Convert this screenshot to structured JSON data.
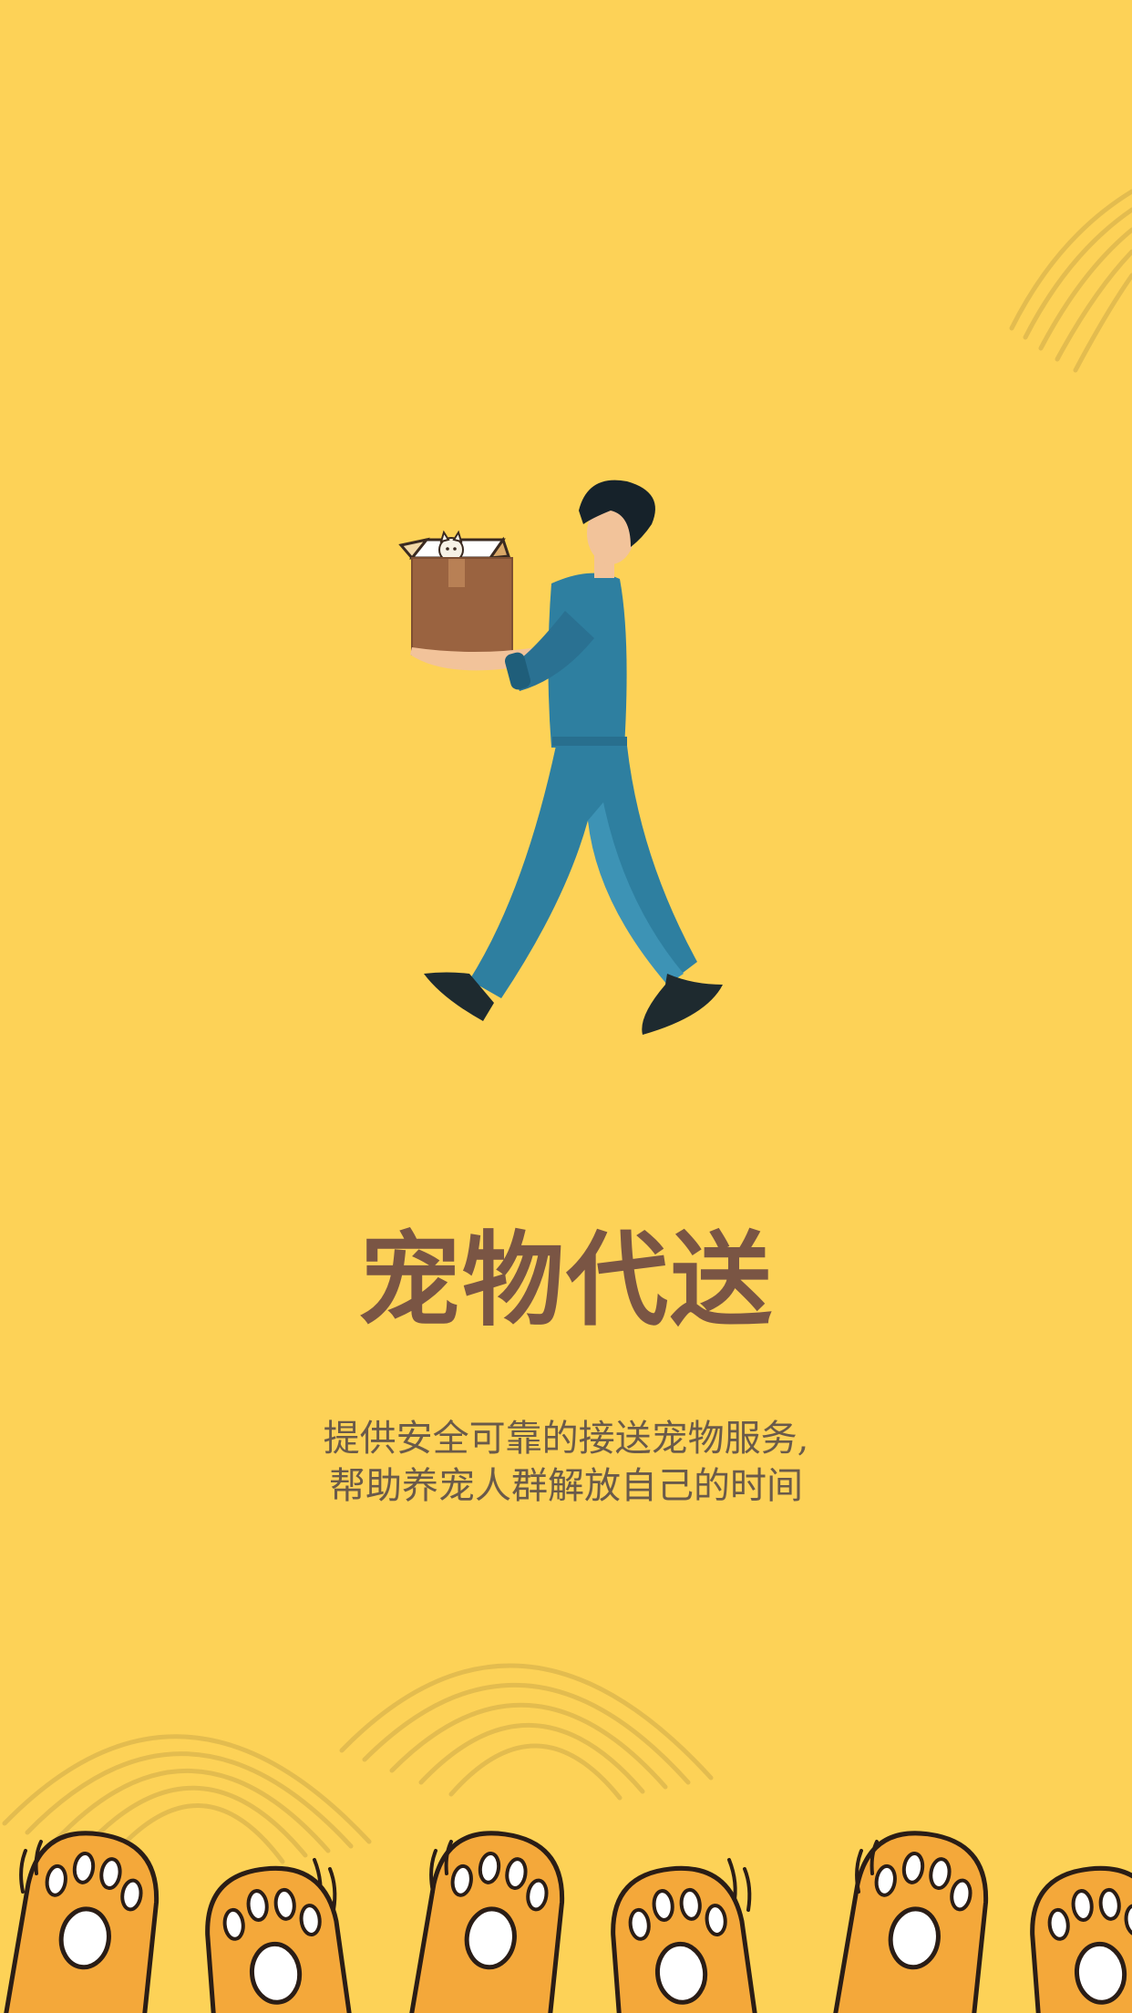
{
  "screen": {
    "title": "宠物代送",
    "description_lines": [
      "提供安全可靠的接送宠物服务,",
      "帮助养宠人群解放自己的时间"
    ]
  },
  "illustration": {
    "subject": "person-carrying-cat-box-icon"
  },
  "colors": {
    "background": "#fdd257",
    "title": "#7a5544",
    "subtitle": "#6a5a4a",
    "clothes": "#2e7fa0",
    "box": "#9a6340",
    "paw": "#f4a83a"
  }
}
